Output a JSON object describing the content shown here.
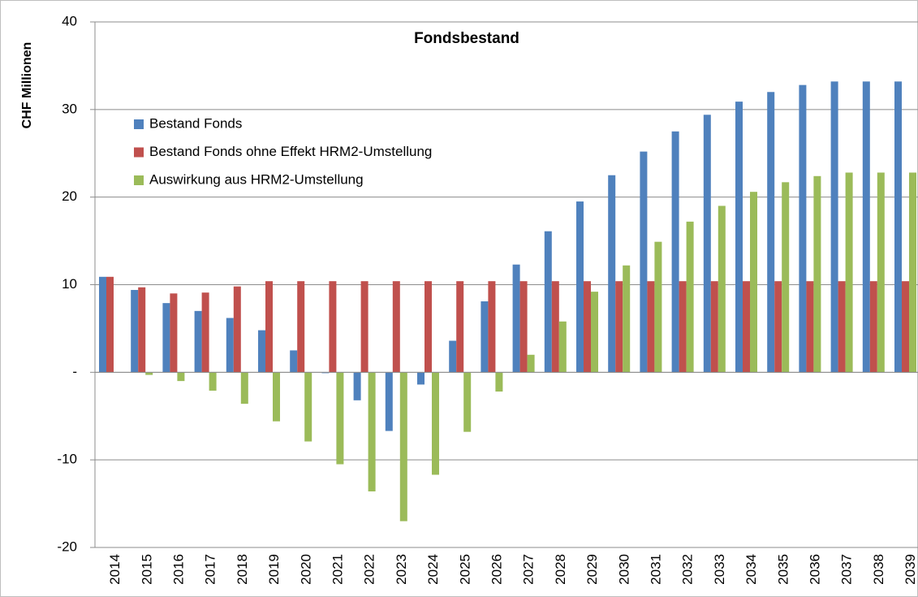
{
  "chart_data": {
    "type": "bar",
    "title": "Fondsbestand",
    "y_label": "CHF Millionen",
    "categories": [
      "2014",
      "2015",
      "2016",
      "2017",
      "2018",
      "2019",
      "2020",
      "2021",
      "2022",
      "2023",
      "2024",
      "2025",
      "2026",
      "2027",
      "2028",
      "2029",
      "2030",
      "2031",
      "2032",
      "2033",
      "2034",
      "2035",
      "2036",
      "2037",
      "2038",
      "2039"
    ],
    "series": [
      {
        "name": "Bestand Fonds",
        "color": "#4f81bd",
        "values": [
          10.9,
          9.4,
          7.9,
          7.0,
          6.2,
          4.8,
          2.5,
          -0.1,
          -3.2,
          -6.7,
          -1.4,
          3.6,
          8.1,
          12.3,
          16.1,
          19.5,
          22.5,
          25.2,
          27.5,
          29.4,
          30.9,
          32.0,
          32.8,
          33.2,
          33.2,
          33.2
        ]
      },
      {
        "name": "Bestand Fonds ohne Effekt HRM2-Umstellung",
        "color": "#c0504d",
        "values": [
          10.9,
          9.7,
          9.0,
          9.1,
          9.8,
          10.4,
          10.4,
          10.4,
          10.4,
          10.4,
          10.4,
          10.4,
          10.4,
          10.4,
          10.4,
          10.4,
          10.4,
          10.4,
          10.4,
          10.4,
          10.4,
          10.4,
          10.4,
          10.4,
          10.4,
          10.4
        ]
      },
      {
        "name": "Auswirkung aus HRM2-Umstellung",
        "color": "#9bbb59",
        "values": [
          0,
          -0.3,
          -1.0,
          -2.1,
          -3.6,
          -5.6,
          -7.9,
          -10.5,
          -13.6,
          -17.0,
          -11.7,
          -6.8,
          -2.2,
          2.0,
          5.8,
          9.2,
          12.2,
          14.9,
          17.2,
          19.0,
          20.6,
          21.7,
          22.4,
          22.8,
          22.8,
          22.8
        ]
      }
    ],
    "ylim": [
      -20,
      40
    ],
    "yticks": [
      -20,
      -10,
      {
        "value": 0,
        "label": "-"
      },
      10,
      20,
      30,
      40
    ],
    "grid": true,
    "legend": "upper left"
  }
}
